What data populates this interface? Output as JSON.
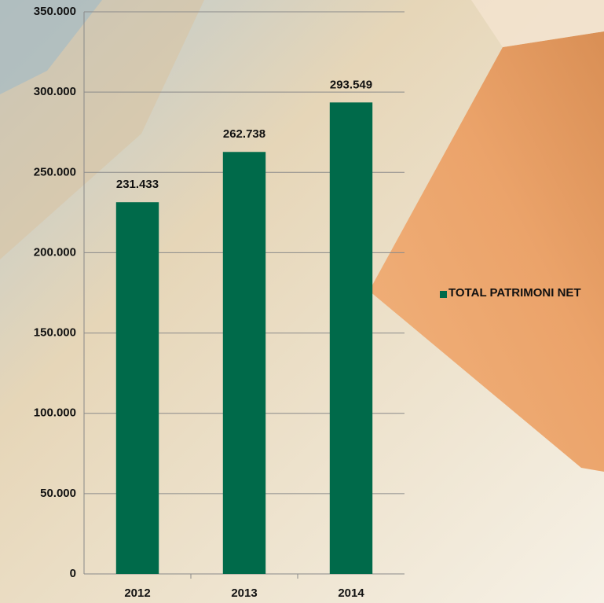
{
  "chart_data": {
    "type": "bar",
    "categories": [
      "2012",
      "2013",
      "2014"
    ],
    "series": [
      {
        "name": "TOTAL PATRIMONI NET",
        "color": "#006a4a",
        "values": [
          231433,
          262738,
          293549
        ],
        "value_labels": [
          "231.433",
          "262.738",
          "293.549"
        ]
      }
    ],
    "ylim": [
      0,
      350000
    ],
    "yticks": [
      0,
      {
        "value": 50000,
        "label": "50.000"
      },
      {
        "value": 100000,
        "label": "100.000"
      },
      {
        "value": 150000,
        "label": "150.000"
      },
      {
        "value": 200000,
        "label": "200.000"
      },
      {
        "value": 250000,
        "label": "250.000"
      },
      {
        "value": 300000,
        "label": "300.000"
      },
      {
        "value": 350000,
        "label": "350.000"
      }
    ],
    "grid": true,
    "legend": "right"
  }
}
